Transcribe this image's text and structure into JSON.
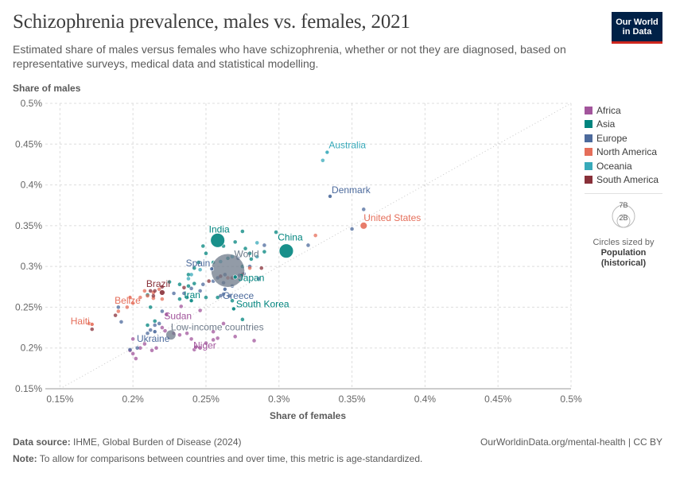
{
  "header": {
    "title": "Schizophrenia prevalence, males vs. females, 2021",
    "subtitle": "Estimated share of males versus females who have schizophrenia, whether or not they are diagnosed, based on representative surveys, medical data and statistical modelling.",
    "logo_line1": "Our World",
    "logo_line2": "in Data"
  },
  "colors": {
    "Africa": "#a2559c",
    "Asia": "#00847e",
    "Europe": "#4c6a9c",
    "North America": "#e56e5a",
    "Oceania": "#38aaba",
    "South America": "#883039",
    "World": "#6d7a89"
  },
  "legend": {
    "items": [
      "Africa",
      "Asia",
      "Europe",
      "North America",
      "Oceania",
      "South America"
    ],
    "size_big": "7B",
    "size_small": "2B",
    "size_note_line1": "Circles sized by",
    "size_note_bold1": "Population",
    "size_note_bold2": "(historical)"
  },
  "footer": {
    "source_label": "Data source:",
    "source_text": "IHME, Global Burden of Disease (2024)",
    "url": "OurWorldinData.org/mental-health | CC BY",
    "note_label": "Note:",
    "note_text": "To allow for comparisons between countries and over time, this metric is age-standardized."
  },
  "chart_data": {
    "type": "scatter",
    "title": "Schizophrenia prevalence, males vs. females, 2021",
    "xlabel": "Share of females",
    "ylabel": "Share of males",
    "xlim": [
      0.14,
      0.5
    ],
    "ylim": [
      0.15,
      0.5
    ],
    "xticks": [
      0.15,
      0.2,
      0.25,
      0.3,
      0.35,
      0.4,
      0.45,
      0.5
    ],
    "yticks": [
      0.15,
      0.2,
      0.25,
      0.3,
      0.35,
      0.4,
      0.45,
      0.5
    ],
    "xtick_labels": [
      "0.15%",
      "0.2%",
      "0.25%",
      "0.3%",
      "0.35%",
      "0.4%",
      "0.45%",
      "0.5%"
    ],
    "ytick_labels": [
      "0.15%",
      "0.2%",
      "0.25%",
      "0.3%",
      "0.35%",
      "0.4%",
      "0.45%",
      "0.5%"
    ],
    "grid": true,
    "diagonal_reference": true,
    "size_encoding": "Population (historical)",
    "labeled_points": [
      {
        "name": "World",
        "region": "World",
        "x": 0.265,
        "y": 0.295,
        "size": 7.9
      },
      {
        "name": "Low-income countries",
        "region": "World",
        "x": 0.226,
        "y": 0.216,
        "size": 0.7
      },
      {
        "name": "India",
        "region": "Asia",
        "x": 0.258,
        "y": 0.332,
        "size": 1.4
      },
      {
        "name": "China",
        "region": "Asia",
        "x": 0.305,
        "y": 0.319,
        "size": 1.4
      },
      {
        "name": "Japan",
        "region": "Asia",
        "x": 0.27,
        "y": 0.287,
        "size": 0.12
      },
      {
        "name": "Iran",
        "region": "Asia",
        "x": 0.24,
        "y": 0.258,
        "size": 0.09
      },
      {
        "name": "South Korea",
        "region": "Asia",
        "x": 0.269,
        "y": 0.248,
        "size": 0.05
      },
      {
        "name": "Australia",
        "region": "Oceania",
        "x": 0.333,
        "y": 0.44,
        "size": 0.03
      },
      {
        "name": "Denmark",
        "region": "Europe",
        "x": 0.335,
        "y": 0.386,
        "size": 0.006
      },
      {
        "name": "Spain",
        "region": "Europe",
        "x": 0.254,
        "y": 0.297,
        "size": 0.05
      },
      {
        "name": "Greece",
        "region": "Europe",
        "x": 0.263,
        "y": 0.272,
        "size": 0.01
      },
      {
        "name": "Ukraine",
        "region": "Europe",
        "x": 0.215,
        "y": 0.22,
        "size": 0.04
      },
      {
        "name": "United States",
        "region": "North America",
        "x": 0.358,
        "y": 0.35,
        "size": 0.34
      },
      {
        "name": "Belize",
        "region": "North America",
        "x": 0.198,
        "y": 0.262,
        "size": 0.001
      },
      {
        "name": "Haiti",
        "region": "North America",
        "x": 0.172,
        "y": 0.229,
        "size": 0.012
      },
      {
        "name": "Brazil",
        "region": "South America",
        "x": 0.22,
        "y": 0.268,
        "size": 0.21
      },
      {
        "name": "Sudan",
        "region": "Africa",
        "x": 0.223,
        "y": 0.241,
        "size": 0.05
      },
      {
        "name": "Niger",
        "region": "Africa",
        "x": 0.243,
        "y": 0.201,
        "size": 0.026
      }
    ],
    "unlabeled_points": [
      {
        "region": "Africa",
        "points": [
          [
            0.283,
            0.209
          ],
          [
            0.27,
            0.214
          ],
          [
            0.258,
            0.212
          ],
          [
            0.255,
            0.21
          ],
          [
            0.25,
            0.206
          ],
          [
            0.246,
            0.2
          ],
          [
            0.242,
            0.198
          ],
          [
            0.24,
            0.211
          ],
          [
            0.237,
            0.218
          ],
          [
            0.232,
            0.216
          ],
          [
            0.228,
            0.218
          ],
          [
            0.22,
            0.225
          ],
          [
            0.216,
            0.2
          ],
          [
            0.213,
            0.197
          ],
          [
            0.208,
            0.205
          ],
          [
            0.205,
            0.2
          ],
          [
            0.202,
            0.187
          ],
          [
            0.2,
            0.193
          ],
          [
            0.198,
            0.197
          ],
          [
            0.2,
            0.211
          ],
          [
            0.222,
            0.221
          ],
          [
            0.233,
            0.251
          ],
          [
            0.246,
            0.246
          ],
          [
            0.262,
            0.23
          ],
          [
            0.255,
            0.22
          ]
        ]
      },
      {
        "region": "Asia",
        "points": [
          [
            0.275,
            0.343
          ],
          [
            0.27,
            0.33
          ],
          [
            0.262,
            0.325
          ],
          [
            0.25,
            0.316
          ],
          [
            0.248,
            0.325
          ],
          [
            0.277,
            0.322
          ],
          [
            0.28,
            0.316
          ],
          [
            0.265,
            0.31
          ],
          [
            0.255,
            0.305
          ],
          [
            0.245,
            0.305
          ],
          [
            0.242,
            0.298
          ],
          [
            0.238,
            0.29
          ],
          [
            0.242,
            0.279
          ],
          [
            0.238,
            0.276
          ],
          [
            0.232,
            0.278
          ],
          [
            0.225,
            0.281
          ],
          [
            0.21,
            0.265
          ],
          [
            0.212,
            0.25
          ],
          [
            0.215,
            0.233
          ],
          [
            0.21,
            0.228
          ],
          [
            0.275,
            0.235
          ],
          [
            0.268,
            0.258
          ],
          [
            0.258,
            0.262
          ],
          [
            0.25,
            0.262
          ],
          [
            0.232,
            0.26
          ],
          [
            0.237,
            0.262
          ],
          [
            0.281,
            0.309
          ],
          [
            0.29,
            0.318
          ],
          [
            0.298,
            0.342
          ],
          [
            0.275,
            0.3
          ]
        ]
      },
      {
        "region": "Europe",
        "points": [
          [
            0.358,
            0.37
          ],
          [
            0.35,
            0.346
          ],
          [
            0.32,
            0.326
          ],
          [
            0.29,
            0.326
          ],
          [
            0.28,
            0.3
          ],
          [
            0.276,
            0.291
          ],
          [
            0.273,
            0.289
          ],
          [
            0.263,
            0.29
          ],
          [
            0.258,
            0.286
          ],
          [
            0.255,
            0.282
          ],
          [
            0.262,
            0.28
          ],
          [
            0.268,
            0.276
          ],
          [
            0.266,
            0.264
          ],
          [
            0.262,
            0.266
          ],
          [
            0.26,
            0.264
          ],
          [
            0.246,
            0.27
          ],
          [
            0.24,
            0.273
          ],
          [
            0.235,
            0.267
          ],
          [
            0.228,
            0.267
          ],
          [
            0.22,
            0.245
          ],
          [
            0.218,
            0.23
          ],
          [
            0.215,
            0.228
          ],
          [
            0.212,
            0.222
          ],
          [
            0.21,
            0.218
          ],
          [
            0.203,
            0.2
          ],
          [
            0.198,
            0.198
          ],
          [
            0.19,
            0.25
          ],
          [
            0.192,
            0.232
          ],
          [
            0.248,
            0.278
          ],
          [
            0.286,
            0.285
          ],
          [
            0.272,
            0.31
          ]
        ]
      },
      {
        "region": "North America",
        "points": [
          [
            0.325,
            0.338
          ],
          [
            0.28,
            0.298
          ],
          [
            0.265,
            0.286
          ],
          [
            0.218,
            0.272
          ],
          [
            0.214,
            0.268
          ],
          [
            0.21,
            0.264
          ],
          [
            0.208,
            0.27
          ],
          [
            0.205,
            0.262
          ],
          [
            0.2,
            0.255
          ],
          [
            0.196,
            0.25
          ],
          [
            0.19,
            0.245
          ],
          [
            0.17,
            0.23
          ],
          [
            0.214,
            0.261
          ],
          [
            0.22,
            0.26
          ]
        ]
      },
      {
        "region": "Oceania",
        "points": [
          [
            0.33,
            0.43
          ],
          [
            0.285,
            0.329
          ],
          [
            0.285,
            0.312
          ],
          [
            0.268,
            0.312
          ],
          [
            0.26,
            0.306
          ],
          [
            0.24,
            0.29
          ],
          [
            0.238,
            0.285
          ],
          [
            0.246,
            0.296
          ]
        ]
      },
      {
        "region": "South America",
        "points": [
          [
            0.288,
            0.298
          ],
          [
            0.275,
            0.29
          ],
          [
            0.268,
            0.286
          ],
          [
            0.26,
            0.288
          ],
          [
            0.252,
            0.282
          ],
          [
            0.235,
            0.274
          ],
          [
            0.22,
            0.275
          ],
          [
            0.215,
            0.27
          ],
          [
            0.212,
            0.27
          ],
          [
            0.172,
            0.223
          ],
          [
            0.188,
            0.24
          ],
          [
            0.214,
            0.264
          ]
        ]
      }
    ]
  }
}
